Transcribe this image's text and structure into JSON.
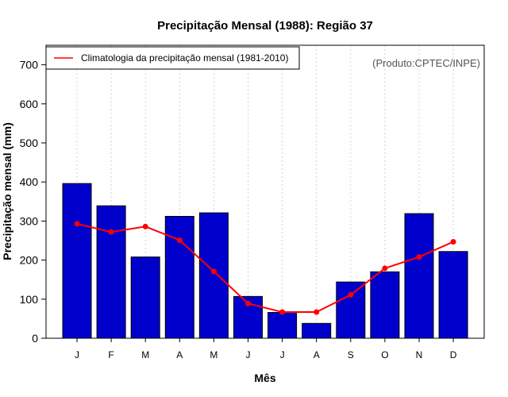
{
  "chart_data": {
    "type": "bar",
    "title": "Precipitação Mensal (1988): Região 37",
    "xlabel": "Mês",
    "ylabel": "Precipitação mensal (mm)",
    "categories": [
      "J",
      "F",
      "M",
      "A",
      "M",
      "J",
      "J",
      "A",
      "S",
      "O",
      "N",
      "D"
    ],
    "ylim": [
      0,
      750
    ],
    "yticks": [
      0,
      100,
      200,
      300,
      400,
      500,
      600,
      700
    ],
    "grid": "vertical dotted",
    "series": [
      {
        "name": "Precipitação mensal 1988",
        "kind": "bar",
        "color": "#0000cc",
        "values": [
          396,
          339,
          208,
          312,
          321,
          107,
          66,
          38,
          144,
          170,
          319,
          222
        ]
      },
      {
        "name": "Climatologia da precipitação mensal (1981-2010)",
        "kind": "line",
        "color": "#ff0000",
        "values": [
          293,
          272,
          286,
          251,
          171,
          89,
          67,
          67,
          111,
          179,
          208,
          247
        ]
      }
    ],
    "legend": {
      "position": "top-left",
      "label": "Climatologia da precipitação mensal (1981-2010)"
    },
    "annotation": "(Produto:CPTEC/INPE)"
  }
}
